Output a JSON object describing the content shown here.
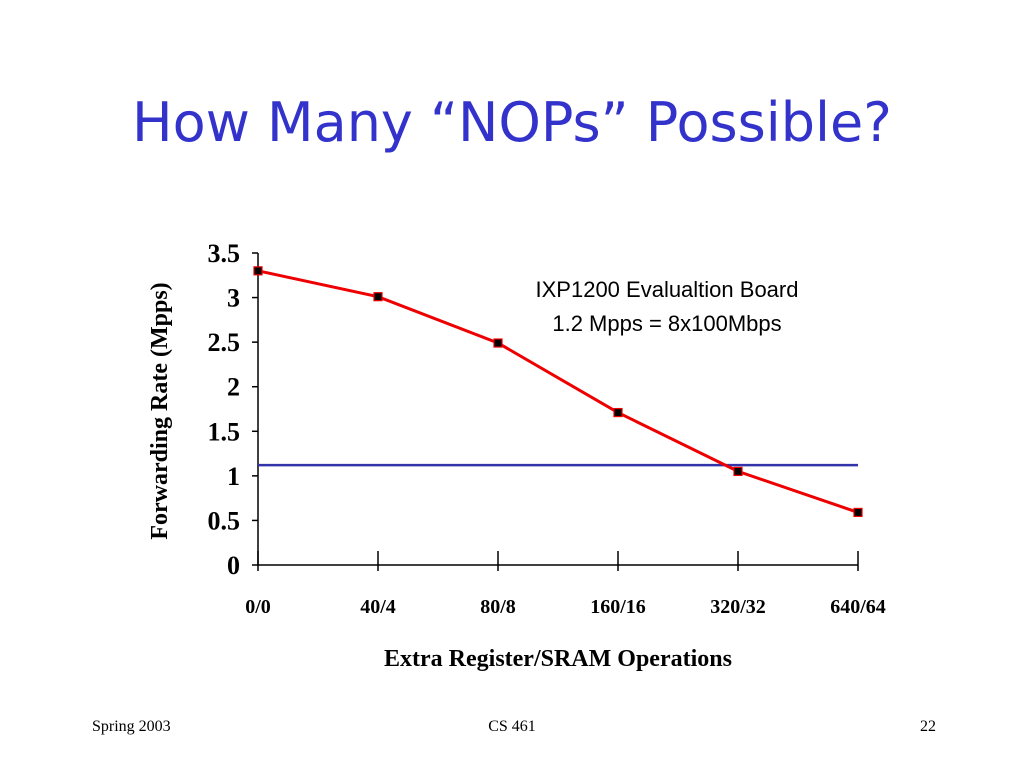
{
  "slide": {
    "title": "How Many “NOPs” Possible?",
    "title_color": "#3333CC"
  },
  "footer": {
    "left": "Spring 2003",
    "center": "CS 461",
    "right": "22"
  },
  "chart_data": {
    "type": "line",
    "title": "",
    "xlabel": "Extra Register/SRAM Operations",
    "ylabel": "Forwarding Rate (Mpps)",
    "categories": [
      "0/0",
      "40/4",
      "80/8",
      "160/16",
      "320/32",
      "640/64"
    ],
    "series": [
      {
        "values": [
          3.3,
          3.01,
          2.49,
          1.71,
          1.05,
          0.59
        ],
        "color": "#EE0000",
        "marker_color": "#000000"
      }
    ],
    "reference_line": {
      "y": 1.12,
      "color": "#3333AA"
    },
    "ylim": [
      0,
      3.5
    ],
    "yticks": [
      "0",
      "0.5",
      "1",
      "1.5",
      "2",
      "2.5",
      "3",
      "3.5"
    ],
    "annotation": [
      "IXP1200 Evalualtion Board",
      "1.2 Mpps = 8x100Mbps"
    ],
    "grid": false,
    "legend": "none"
  }
}
